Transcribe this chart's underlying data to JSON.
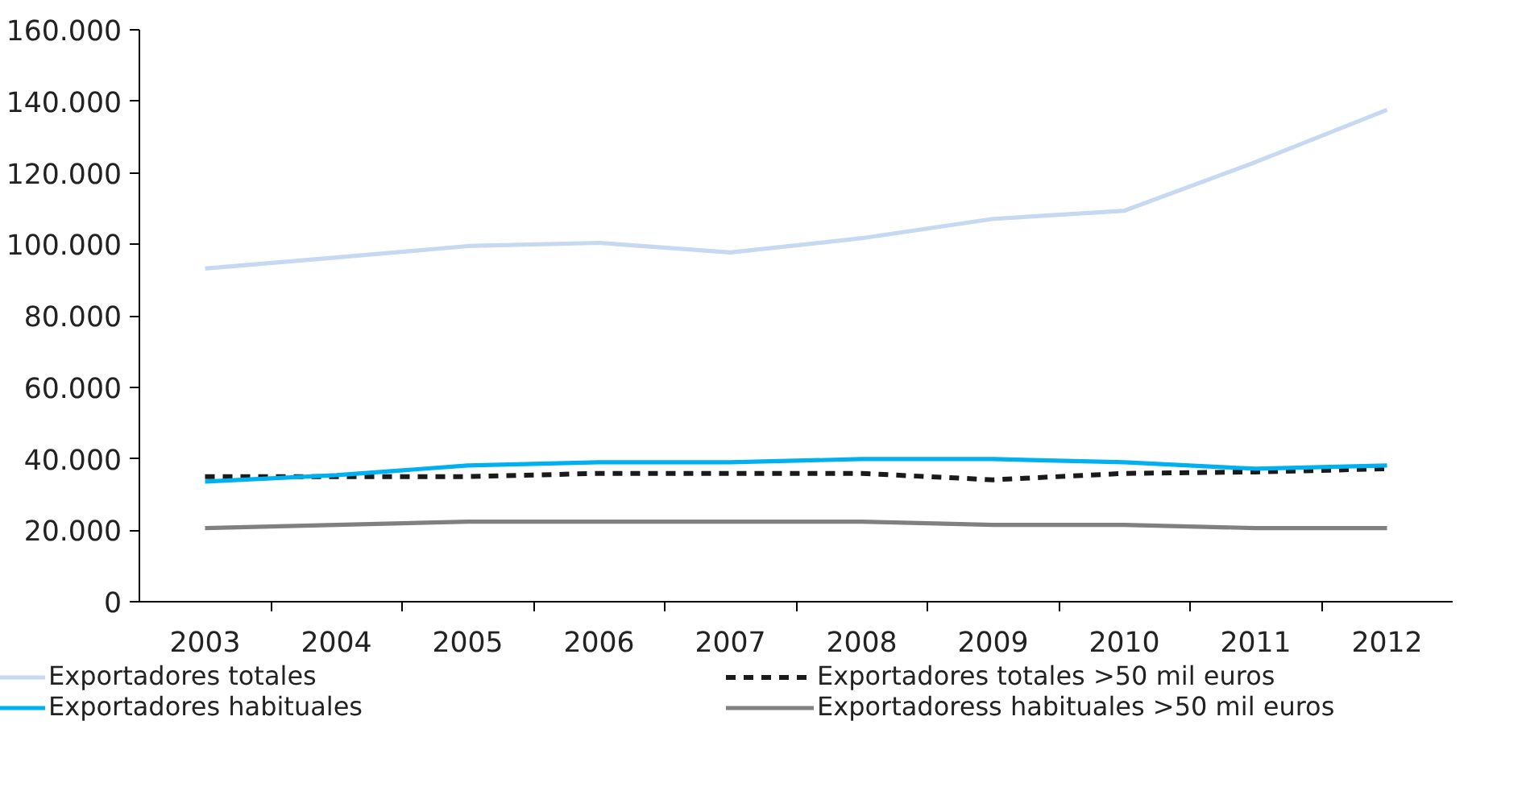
{
  "chart_data": {
    "type": "line",
    "categories": [
      "2003",
      "2004",
      "2005",
      "2006",
      "2007",
      "2008",
      "2009",
      "2010",
      "2011",
      "2012"
    ],
    "series": [
      {
        "name": "Exportadores totales",
        "color": "#c6d9f1",
        "line_style": "solid",
        "values": [
          93200,
          96300,
          99500,
          100400,
          97700,
          101700,
          107100,
          109400,
          123000,
          137600
        ]
      },
      {
        "name": "Exportadores totales >50 mil euros",
        "color": "#1a1a1a",
        "line_style": "dashed",
        "values": [
          35000,
          35000,
          35000,
          35900,
          35900,
          35900,
          34100,
          35900,
          36300,
          37200
        ]
      },
      {
        "name": "Exportadores habituales",
        "color": "#00b0f0",
        "line_style": "solid",
        "values": [
          33600,
          35400,
          38100,
          39000,
          39000,
          39900,
          39900,
          39000,
          37200,
          38100
        ]
      },
      {
        "name": "Exportadoress habituales >50 mil euros",
        "color": "#808080",
        "line_style": "solid",
        "values": [
          20600,
          21500,
          22400,
          22400,
          22400,
          22400,
          21500,
          21500,
          20600,
          20600
        ]
      }
    ],
    "ylim": [
      0,
      160000
    ],
    "yticks": [
      {
        "value": 0,
        "label": "0"
      },
      {
        "value": 20000,
        "label": "20.000"
      },
      {
        "value": 40000,
        "label": "40.000"
      },
      {
        "value": 60000,
        "label": "60.000"
      },
      {
        "value": 80000,
        "label": "80.000"
      },
      {
        "value": 100000,
        "label": "100.000"
      },
      {
        "value": 120000,
        "label": "120.000"
      },
      {
        "value": 140000,
        "label": "140.000"
      },
      {
        "value": 160000,
        "label": "160.000"
      }
    ],
    "legend": "bottom"
  }
}
